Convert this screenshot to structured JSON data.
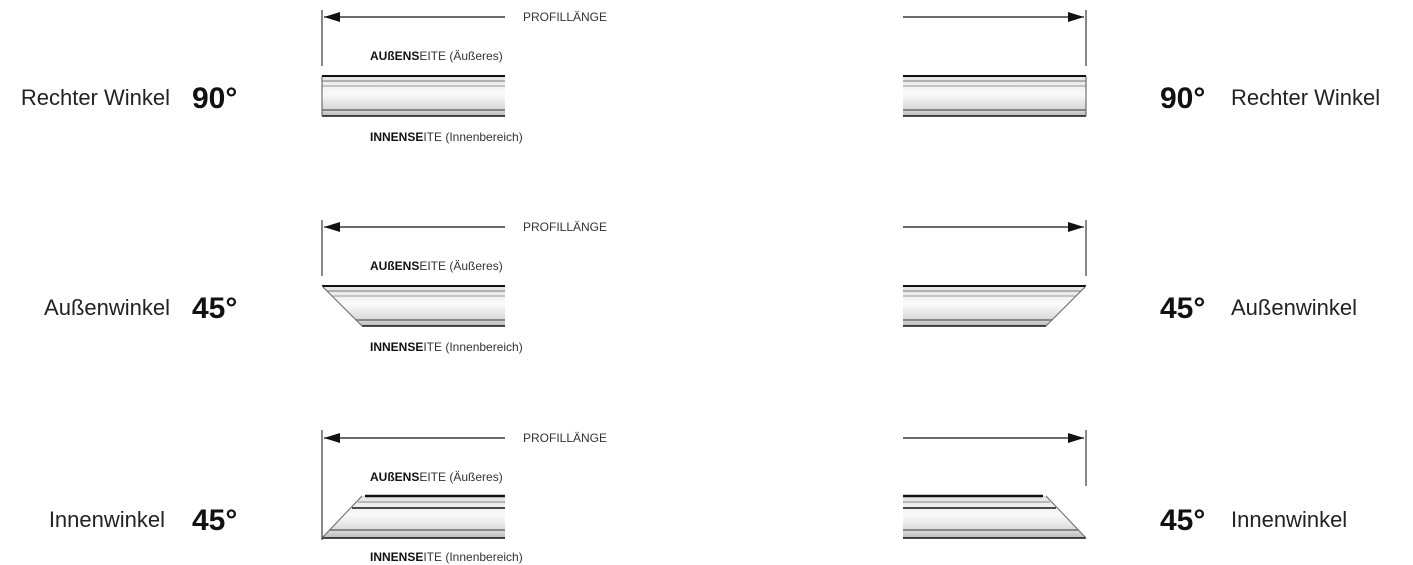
{
  "dimension_label": "PROFILLÄNGE",
  "outer_side": {
    "bold": "AUßENS",
    "normal": "EITE (Äußeres)"
  },
  "inner_side": {
    "bold": "INNENSE",
    "normal": "ITE (Innenbereich)"
  },
  "rows": [
    {
      "name": "Rechter Winkel",
      "angle": "90°",
      "cut": "right"
    },
    {
      "name": "Außenwinkel",
      "angle": "45°",
      "cut": "outside"
    },
    {
      "name": "Innenwinkel",
      "angle": "45°",
      "cut": "inside"
    }
  ],
  "colors": {
    "stroke": "#111111",
    "fill_light": "#f4f4f4",
    "fill_dark": "#bdbdbd",
    "band": "#cfcfcf"
  }
}
